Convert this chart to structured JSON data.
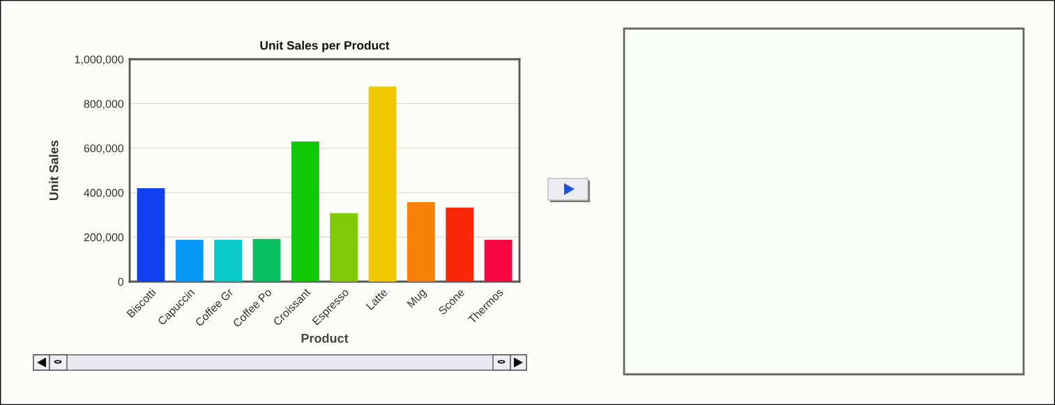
{
  "chart_data": {
    "type": "bar",
    "title": "Unit Sales per Product",
    "xlabel": "Product",
    "ylabel": "Unit Sales",
    "categories": [
      "Biscotti",
      "Capuccin",
      "Coffee Gr",
      "Coffee Po",
      "Croissant",
      "Espresso",
      "Latte",
      "Mug",
      "Scone",
      "Thermos"
    ],
    "values": [
      420000,
      188000,
      188000,
      192000,
      630000,
      308000,
      877000,
      357000,
      333000,
      188000
    ],
    "colors": [
      "#1040f0",
      "#0898f8",
      "#08c8c8",
      "#08c060",
      "#10c808",
      "#80c808",
      "#f0c800",
      "#f88008",
      "#f82808",
      "#f80840"
    ],
    "ylim": [
      0,
      1000000
    ],
    "yticks": [
      {
        "value": 0,
        "label": "0"
      },
      {
        "value": 200000,
        "label": "200,000"
      },
      {
        "value": 400000,
        "label": "400,000"
      },
      {
        "value": 600000,
        "label": "600,000"
      },
      {
        "value": 800000,
        "label": "800,000"
      },
      {
        "value": 1000000,
        "label": "1,000,000"
      }
    ],
    "grid": "y"
  }
}
